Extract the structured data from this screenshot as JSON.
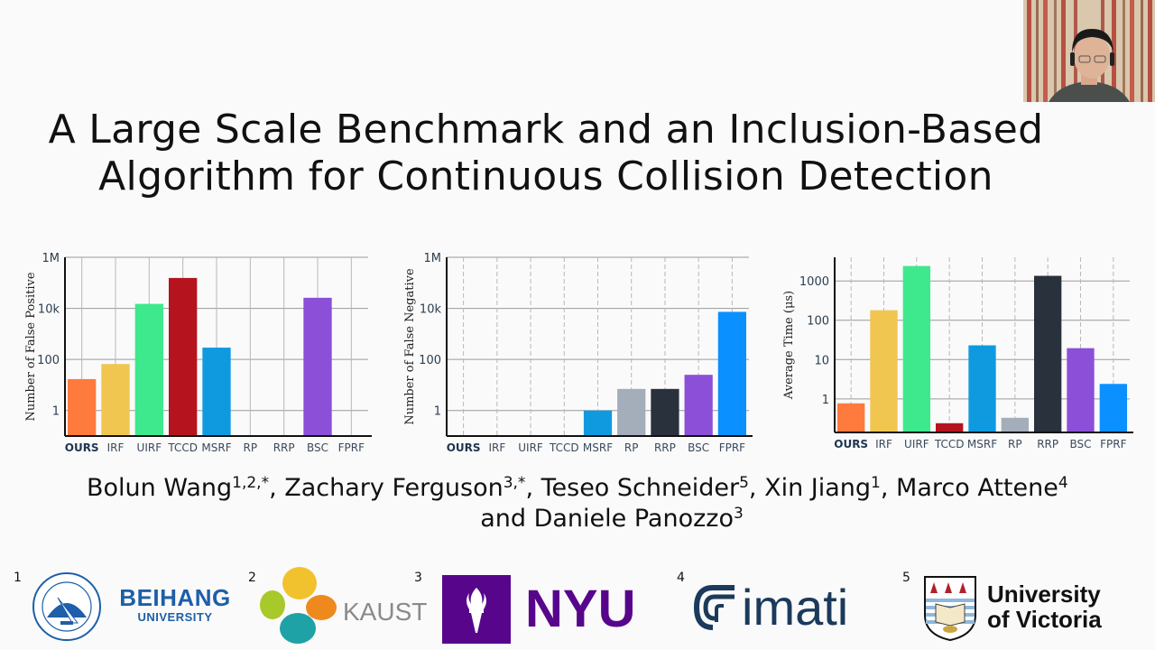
{
  "slide": {
    "title_line1": "A Large Scale Benchmark and an Inclusion-Based",
    "title_line2": "Algorithm for Continuous Collision Detection"
  },
  "authors": {
    "line1": [
      {
        "name": "Bolun Wang",
        "sup": "1,2,*",
        "sep": ", "
      },
      {
        "name": "Zachary Ferguson",
        "sup": "3,*",
        "sep": ", "
      },
      {
        "name": "Teseo Schneider",
        "sup": "5",
        "sep": ", "
      },
      {
        "name": "Xin Jiang",
        "sup": "1",
        "sep": ", "
      },
      {
        "name": "Marco Attene",
        "sup": "4",
        "sep": ""
      }
    ],
    "line2_prefix": "and ",
    "line2_name": "Daniele Panozzo",
    "line2_sup": "3"
  },
  "affiliations": [
    {
      "num": "1",
      "name": "BEIHANG",
      "sub": "UNIVERSITY",
      "color": "#1d5fa8"
    },
    {
      "num": "2",
      "name": "KAUST",
      "color": "#8a8a8a"
    },
    {
      "num": "3",
      "name": "NYU",
      "color": "#57068c"
    },
    {
      "num": "4",
      "name": "imati",
      "color": "#1b3a5c"
    },
    {
      "num": "5",
      "name": "University",
      "sub": "of Victoria",
      "color": "#111111"
    }
  ],
  "webcam": {
    "label": "presenter-video"
  },
  "colors": {
    "OURS": "#ff7a3d",
    "IRF": "#f0c550",
    "UIRF": "#3ee88c",
    "TCCD": "#b5141f",
    "MSRF": "#0f9ae0",
    "RP": "#a4adba",
    "RRP": "#28313c",
    "BSC": "#8c4fd8",
    "FPRF": "#0a90ff"
  },
  "chart_data": [
    {
      "type": "bar",
      "title": "",
      "xlabel": "",
      "ylabel": "Number of False Positive",
      "yscale": "log",
      "ylim": [
        0.1,
        1000000
      ],
      "yticks": [
        "1",
        "100",
        "10k",
        "1M"
      ],
      "grid": true,
      "categories": [
        "OURS",
        "IRF",
        "UIRF",
        "TCCD",
        "MSRF",
        "RP",
        "RRP",
        "BSC",
        "FPRF"
      ],
      "values": [
        17,
        66,
        15000,
        155000,
        290,
        0,
        0,
        26000,
        0
      ]
    },
    {
      "type": "bar",
      "title": "",
      "xlabel": "",
      "ylabel": "Number of False Negative",
      "yscale": "log",
      "ylim": [
        0.1,
        1000000
      ],
      "yticks": [
        "1",
        "100",
        "10k",
        "1M"
      ],
      "grid": true,
      "categories": [
        "OURS",
        "IRF",
        "UIRF",
        "TCCD",
        "MSRF",
        "RP",
        "RRP",
        "BSC",
        "FPRF"
      ],
      "values": [
        0,
        0,
        0,
        0,
        1,
        7,
        7,
        25,
        7300
      ]
    },
    {
      "type": "bar",
      "title": "",
      "xlabel": "",
      "ylabel": "Average Time (μs)",
      "yscale": "log",
      "ylim": [
        0.14,
        4000
      ],
      "yticks": [
        "1",
        "10",
        "100",
        "1000"
      ],
      "grid": true,
      "categories": [
        "OURS",
        "IRF",
        "UIRF",
        "TCCD",
        "MSRF",
        "RP",
        "RRP",
        "BSC",
        "FPRF"
      ],
      "values": [
        0.77,
        180,
        2400,
        0.24,
        23,
        0.33,
        1350,
        19.5,
        2.4
      ]
    }
  ]
}
